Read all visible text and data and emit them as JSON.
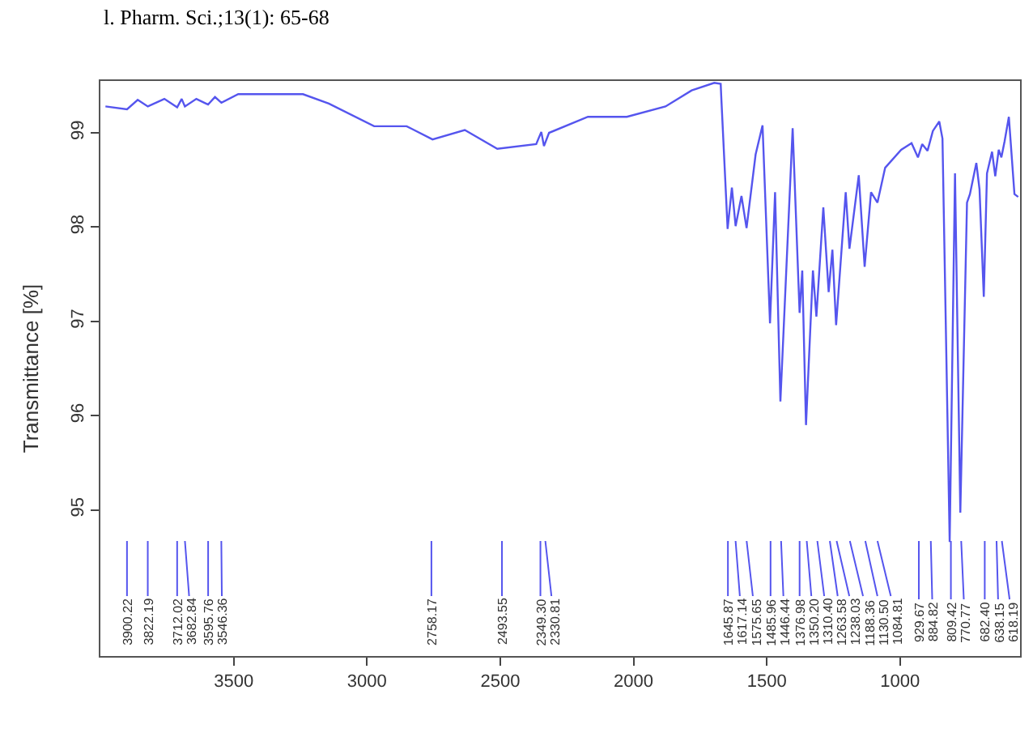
{
  "chart_data": {
    "type": "line",
    "ylabel": "Transmittance [%]",
    "annotations": [
      "l. Pharm. Sci.;13(1): 65-68",
      {
        "text": "3900.22",
        "x": 3900.22
      },
      {
        "text": "3822.19",
        "x": 3822.19
      },
      {
        "text": "3712.02",
        "x": 3712.02
      },
      {
        "text": "3682.84",
        "x": 3682.84
      },
      {
        "text": "3595.76",
        "x": 3595.76
      },
      {
        "text": "3546.36",
        "x": 3546.36
      },
      {
        "text": "2758.17",
        "x": 2758.17
      },
      {
        "text": "2493.55",
        "x": 2493.55
      },
      {
        "text": "2349.30",
        "x": 2349.3
      },
      {
        "text": "2330.81",
        "x": 2330.81
      },
      {
        "text": "1645.87",
        "x": 1645.87
      },
      {
        "text": "1617.14",
        "x": 1617.14
      },
      {
        "text": "1575.65",
        "x": 1575.65
      },
      {
        "text": "1485.96",
        "x": 1485.96
      },
      {
        "text": "1446.44",
        "x": 1446.44
      },
      {
        "text": "1376.98",
        "x": 1376.98
      },
      {
        "text": "1350.20",
        "x": 1350.2
      },
      {
        "text": "1310.40",
        "x": 1310.4
      },
      {
        "text": "1263.58",
        "x": 1263.58
      },
      {
        "text": "1238.03",
        "x": 1238.03
      },
      {
        "text": "1188.36",
        "x": 1188.36
      },
      {
        "text": "1130.50",
        "x": 1130.5
      },
      {
        "text": "1084.81",
        "x": 1084.81
      },
      {
        "text": "929.67",
        "x": 929.67
      },
      {
        "text": "884.82",
        "x": 884.82
      },
      {
        "text": "809.42",
        "x": 809.42
      },
      {
        "text": "770.77",
        "x": 770.77
      },
      {
        "text": "682.40",
        "x": 682.4
      },
      {
        "text": "638.15",
        "x": 638.15
      },
      {
        "text": "618.19",
        "x": 618.19
      }
    ],
    "x": [
      3981,
      3900,
      3860,
      3822,
      3760,
      3712,
      3695,
      3683,
      3640,
      3596,
      3570,
      3546,
      3483,
      3240,
      3143,
      2973,
      2851,
      2754,
      2633,
      2511,
      2365,
      2346,
      2336,
      2317,
      2171,
      2025,
      1880,
      1782,
      1697,
      1673,
      1671,
      1647,
      1631,
      1617,
      1595,
      1576,
      1542,
      1516,
      1488,
      1469,
      1449,
      1403,
      1377,
      1367,
      1353,
      1327,
      1314,
      1288,
      1268,
      1254,
      1240,
      1204,
      1190,
      1155,
      1133,
      1109,
      1085,
      1056,
      996,
      957,
      933,
      917,
      897,
      877,
      853,
      841,
      814,
      794,
      774,
      749,
      738,
      714,
      702,
      686,
      674,
      655,
      643,
      630,
      620,
      608,
      592,
      571,
      557
    ],
    "series": [
      {
        "color": "#5555ee",
        "values": [
          99.28,
          99.25,
          99.35,
          99.28,
          99.36,
          99.27,
          99.36,
          99.28,
          99.36,
          99.3,
          99.38,
          99.32,
          99.41,
          99.41,
          99.31,
          99.07,
          99.07,
          98.93,
          99.03,
          98.83,
          98.88,
          99.01,
          98.86,
          99.0,
          99.17,
          99.17,
          99.28,
          99.45,
          99.53,
          99.52,
          99.39,
          97.98,
          98.42,
          98.01,
          98.33,
          97.99,
          98.77,
          99.08,
          96.98,
          98.37,
          96.15,
          99.05,
          97.09,
          97.54,
          95.9,
          97.54,
          97.05,
          98.21,
          97.31,
          97.76,
          96.96,
          98.37,
          97.77,
          98.55,
          97.58,
          98.37,
          98.26,
          98.63,
          98.82,
          98.89,
          98.74,
          98.88,
          98.81,
          99.02,
          99.12,
          98.94,
          94.66,
          98.57,
          94.97,
          98.26,
          98.35,
          98.68,
          98.4,
          97.26,
          98.57,
          98.8,
          98.54,
          98.82,
          98.74,
          98.91,
          99.17,
          98.35,
          98.32
        ]
      }
    ],
    "xlim": [
      4000,
      550
    ],
    "xticks": [
      3500,
      3000,
      2500,
      2000,
      1500,
      1000
    ],
    "ylim": [
      93.45,
      99.55
    ],
    "yticks": [
      95,
      96,
      97,
      98,
      99
    ],
    "marker": "none",
    "line_style": "solid"
  }
}
